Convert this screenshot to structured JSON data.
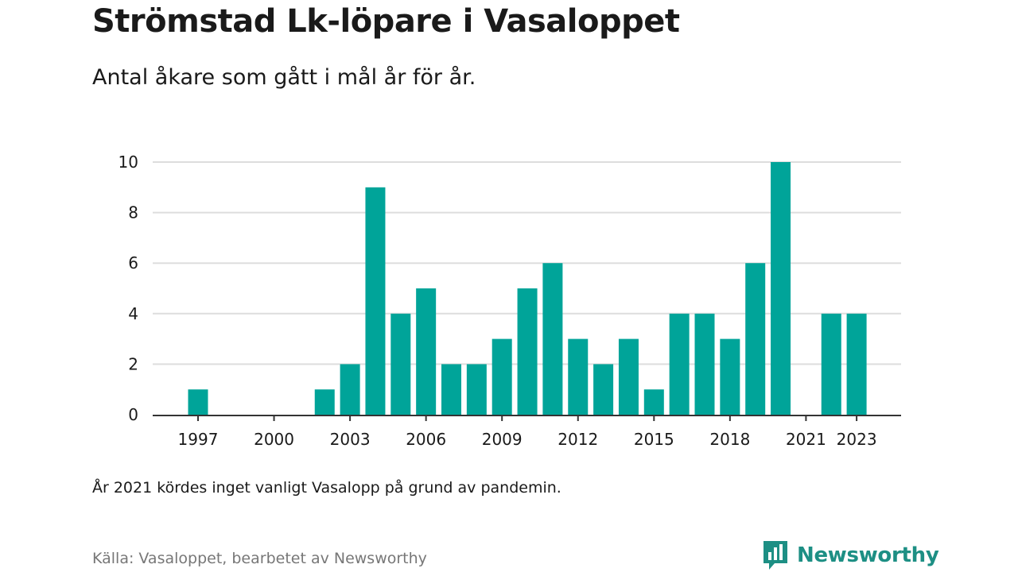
{
  "header": {
    "title": "Strömstad Lk-löpare i Vasaloppet",
    "subtitle": "Antal åkare som gått i mål år för år."
  },
  "footer": {
    "note": "År 2021 kördes inget vanligt Vasalopp på grund av pandemin.",
    "source": "Källa: Vasaloppet, bearbetet av Newsworthy",
    "brand": "Newsworthy",
    "brand_icon": "newsworthy-logo-icon"
  },
  "colors": {
    "bar": "#00a499",
    "grid": "#dddddd",
    "axis": "#333333",
    "brand": "#1d8f84"
  },
  "chart_data": {
    "type": "bar",
    "x": [
      1997,
      1998,
      1999,
      2000,
      2001,
      2002,
      2003,
      2004,
      2005,
      2006,
      2007,
      2008,
      2009,
      2010,
      2011,
      2012,
      2013,
      2014,
      2015,
      2016,
      2017,
      2018,
      2019,
      2020,
      2021,
      2022,
      2023
    ],
    "values": [
      1,
      0,
      0,
      0,
      0,
      1,
      2,
      9,
      4,
      5,
      2,
      2,
      3,
      5,
      6,
      3,
      2,
      3,
      1,
      4,
      4,
      3,
      6,
      10,
      0,
      4,
      4
    ],
    "x_tick_labels": [
      "1997",
      "2000",
      "2003",
      "2006",
      "2009",
      "2012",
      "2015",
      "2018",
      "2021",
      "2023"
    ],
    "y_ticks": [
      0,
      2,
      4,
      6,
      8,
      10
    ],
    "ylim": [
      0,
      10
    ],
    "grid": true,
    "xlabel": "",
    "ylabel": ""
  }
}
